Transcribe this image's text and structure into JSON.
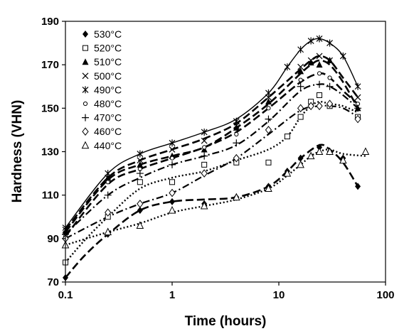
{
  "chart_data": {
    "type": "scatter",
    "xlabel": "Time (hours)",
    "ylabel": "Hardness (VHN)",
    "xscale": "log",
    "xlim": [
      0.1,
      100
    ],
    "ylim": [
      70,
      190
    ],
    "xticks": [
      0.1,
      1,
      10,
      100
    ],
    "xtick_labels": [
      "0.1",
      "1",
      "10",
      "100"
    ],
    "yticks": [
      70,
      90,
      110,
      130,
      150,
      170,
      190
    ],
    "ytick_labels": [
      "70",
      "90",
      "110",
      "130",
      "150",
      "170",
      "190"
    ],
    "grid": false,
    "legend_position": "top-left",
    "series": [
      {
        "name": "530°C",
        "marker": "diamond-filled",
        "line": "long-dash",
        "points": [
          [
            0.1,
            72
          ],
          [
            0.25,
            92
          ],
          [
            0.5,
            103
          ],
          [
            1,
            107
          ],
          [
            2,
            106
          ],
          [
            4,
            109
          ],
          [
            8,
            114
          ],
          [
            12,
            121
          ],
          [
            16,
            127
          ],
          [
            24,
            132
          ],
          [
            30,
            130
          ],
          [
            40,
            127
          ],
          [
            55,
            114
          ]
        ],
        "curve": [
          [
            0.1,
            72
          ],
          [
            0.15,
            82
          ],
          [
            0.25,
            92
          ],
          [
            0.5,
            103
          ],
          [
            1,
            107
          ],
          [
            2,
            108
          ],
          [
            4,
            109
          ],
          [
            8,
            114
          ],
          [
            12,
            121
          ],
          [
            16,
            127
          ],
          [
            24,
            133
          ],
          [
            30,
            131
          ],
          [
            40,
            125
          ],
          [
            55,
            114
          ]
        ]
      },
      {
        "name": "520°C",
        "marker": "square-open",
        "line": "dotted",
        "points": [
          [
            0.1,
            79
          ],
          [
            0.25,
            100
          ],
          [
            0.5,
            116
          ],
          [
            1,
            116
          ],
          [
            2,
            124
          ],
          [
            4,
            125
          ],
          [
            8,
            125
          ],
          [
            12,
            137
          ],
          [
            16,
            146
          ],
          [
            20,
            153
          ],
          [
            24,
            156
          ],
          [
            30,
            151
          ],
          [
            55,
            146
          ]
        ],
        "curve": [
          [
            0.1,
            79
          ],
          [
            0.15,
            89
          ],
          [
            0.25,
            100
          ],
          [
            0.5,
            113
          ],
          [
            1,
            118
          ],
          [
            2,
            121
          ],
          [
            4,
            126
          ],
          [
            8,
            131
          ],
          [
            12,
            137
          ],
          [
            16,
            146
          ],
          [
            20,
            151
          ],
          [
            24,
            153
          ],
          [
            30,
            152
          ],
          [
            40,
            151
          ],
          [
            55,
            148
          ]
        ]
      },
      {
        "name": "510°C",
        "marker": "triangle-filled",
        "line": "long-dash",
        "points": [
          [
            0.1,
            93
          ],
          [
            0.25,
            118
          ],
          [
            0.5,
            124
          ],
          [
            1,
            128
          ],
          [
            2,
            131
          ],
          [
            4,
            141
          ],
          [
            8,
            153
          ],
          [
            16,
            167
          ],
          [
            20,
            171
          ],
          [
            24,
            170
          ],
          [
            30,
            172
          ],
          [
            55,
            150
          ]
        ],
        "curve": [
          [
            0.1,
            93
          ],
          [
            0.25,
            117
          ],
          [
            0.5,
            124
          ],
          [
            1,
            128
          ],
          [
            2,
            132
          ],
          [
            4,
            141
          ],
          [
            8,
            152
          ],
          [
            16,
            166
          ],
          [
            20,
            170
          ],
          [
            24,
            172
          ],
          [
            30,
            170
          ],
          [
            40,
            162
          ],
          [
            55,
            150
          ]
        ]
      },
      {
        "name": "500°C",
        "marker": "x",
        "line": "long-dash",
        "points": [
          [
            0.1,
            94
          ],
          [
            0.25,
            118
          ],
          [
            0.5,
            126
          ],
          [
            1,
            131
          ],
          [
            2,
            135
          ],
          [
            4,
            142
          ],
          [
            8,
            155
          ],
          [
            16,
            169
          ],
          [
            20,
            172
          ],
          [
            24,
            174
          ],
          [
            30,
            172
          ],
          [
            55,
            155
          ]
        ],
        "curve": [
          [
            0.1,
            94
          ],
          [
            0.25,
            118
          ],
          [
            0.5,
            126
          ],
          [
            1,
            131
          ],
          [
            2,
            136
          ],
          [
            4,
            143
          ],
          [
            8,
            155
          ],
          [
            16,
            168
          ],
          [
            20,
            172
          ],
          [
            24,
            174
          ],
          [
            30,
            172
          ],
          [
            40,
            164
          ],
          [
            55,
            155
          ]
        ]
      },
      {
        "name": "490°C",
        "marker": "asterisk",
        "line": "solid",
        "points": [
          [
            0.1,
            95
          ],
          [
            0.25,
            120
          ],
          [
            0.5,
            129
          ],
          [
            1,
            134
          ],
          [
            2,
            139
          ],
          [
            4,
            144
          ],
          [
            8,
            157
          ],
          [
            12,
            169
          ],
          [
            16,
            177
          ],
          [
            20,
            181
          ],
          [
            24,
            182
          ],
          [
            30,
            180
          ],
          [
            40,
            174
          ],
          [
            55,
            160
          ]
        ],
        "curve": [
          [
            0.1,
            95
          ],
          [
            0.25,
            120
          ],
          [
            0.5,
            129
          ],
          [
            1,
            134
          ],
          [
            2,
            139
          ],
          [
            4,
            145
          ],
          [
            8,
            157
          ],
          [
            12,
            169
          ],
          [
            16,
            177
          ],
          [
            20,
            181
          ],
          [
            24,
            182
          ],
          [
            30,
            180
          ],
          [
            40,
            174
          ],
          [
            55,
            160
          ]
        ]
      },
      {
        "name": "480°C",
        "marker": "circle-small",
        "line": "long-dash",
        "points": [
          [
            0.1,
            91
          ],
          [
            0.25,
            116
          ],
          [
            0.5,
            122
          ],
          [
            1,
            127
          ],
          [
            2,
            132
          ],
          [
            4,
            138
          ],
          [
            8,
            150
          ],
          [
            16,
            163
          ],
          [
            24,
            166
          ],
          [
            30,
            164
          ],
          [
            55,
            152
          ]
        ],
        "curve": [
          [
            0.1,
            91
          ],
          [
            0.25,
            115
          ],
          [
            0.5,
            122
          ],
          [
            1,
            127
          ],
          [
            2,
            132
          ],
          [
            4,
            139
          ],
          [
            8,
            150
          ],
          [
            16,
            162
          ],
          [
            24,
            166
          ],
          [
            30,
            164
          ],
          [
            40,
            158
          ],
          [
            55,
            152
          ]
        ]
      },
      {
        "name": "470°C",
        "marker": "plus",
        "line": "dash-dot",
        "points": [
          [
            0.1,
            92
          ],
          [
            0.25,
            110
          ],
          [
            0.5,
            120
          ],
          [
            1,
            124
          ],
          [
            2,
            128
          ],
          [
            4,
            134
          ],
          [
            8,
            145
          ],
          [
            16,
            160
          ],
          [
            24,
            161
          ],
          [
            30,
            160
          ],
          [
            55,
            150
          ]
        ],
        "curve": [
          [
            0.1,
            92
          ],
          [
            0.25,
            110
          ],
          [
            0.5,
            118
          ],
          [
            1,
            124
          ],
          [
            2,
            128
          ],
          [
            4,
            133
          ],
          [
            8,
            144
          ],
          [
            16,
            158
          ],
          [
            24,
            161
          ],
          [
            30,
            160
          ],
          [
            40,
            156
          ],
          [
            55,
            150
          ]
        ]
      },
      {
        "name": "460°C",
        "marker": "diamond-open",
        "line": "dash-dot",
        "points": [
          [
            0.1,
            90
          ],
          [
            0.25,
            102
          ],
          [
            0.5,
            106
          ],
          [
            1,
            111
          ],
          [
            2,
            120
          ],
          [
            4,
            127
          ],
          [
            8,
            140
          ],
          [
            16,
            150
          ],
          [
            20,
            151
          ],
          [
            24,
            151
          ],
          [
            30,
            152
          ],
          [
            55,
            145
          ]
        ],
        "curve": [
          [
            0.1,
            90
          ],
          [
            0.25,
            100
          ],
          [
            0.5,
            106
          ],
          [
            1,
            111
          ],
          [
            2,
            119
          ],
          [
            4,
            127
          ],
          [
            8,
            138
          ],
          [
            16,
            149
          ],
          [
            24,
            151
          ],
          [
            30,
            151
          ],
          [
            40,
            150
          ],
          [
            55,
            146
          ]
        ]
      },
      {
        "name": "440°C",
        "marker": "triangle-open",
        "line": "dotted",
        "points": [
          [
            0.1,
            87
          ],
          [
            0.25,
            93
          ],
          [
            0.5,
            96
          ],
          [
            1,
            103
          ],
          [
            2,
            105
          ],
          [
            4,
            109
          ],
          [
            8,
            113
          ],
          [
            12,
            120
          ],
          [
            16,
            124
          ],
          [
            20,
            128
          ],
          [
            24,
            130
          ],
          [
            30,
            130
          ],
          [
            40,
            126
          ],
          [
            65,
            130
          ]
        ],
        "curve": [
          [
            0.1,
            87
          ],
          [
            0.25,
            93
          ],
          [
            0.5,
            97
          ],
          [
            1,
            102
          ],
          [
            2,
            105
          ],
          [
            4,
            108
          ],
          [
            8,
            113
          ],
          [
            12,
            119
          ],
          [
            16,
            124
          ],
          [
            20,
            128
          ],
          [
            24,
            130
          ],
          [
            30,
            131
          ],
          [
            40,
            129
          ],
          [
            65,
            128
          ]
        ]
      }
    ]
  }
}
